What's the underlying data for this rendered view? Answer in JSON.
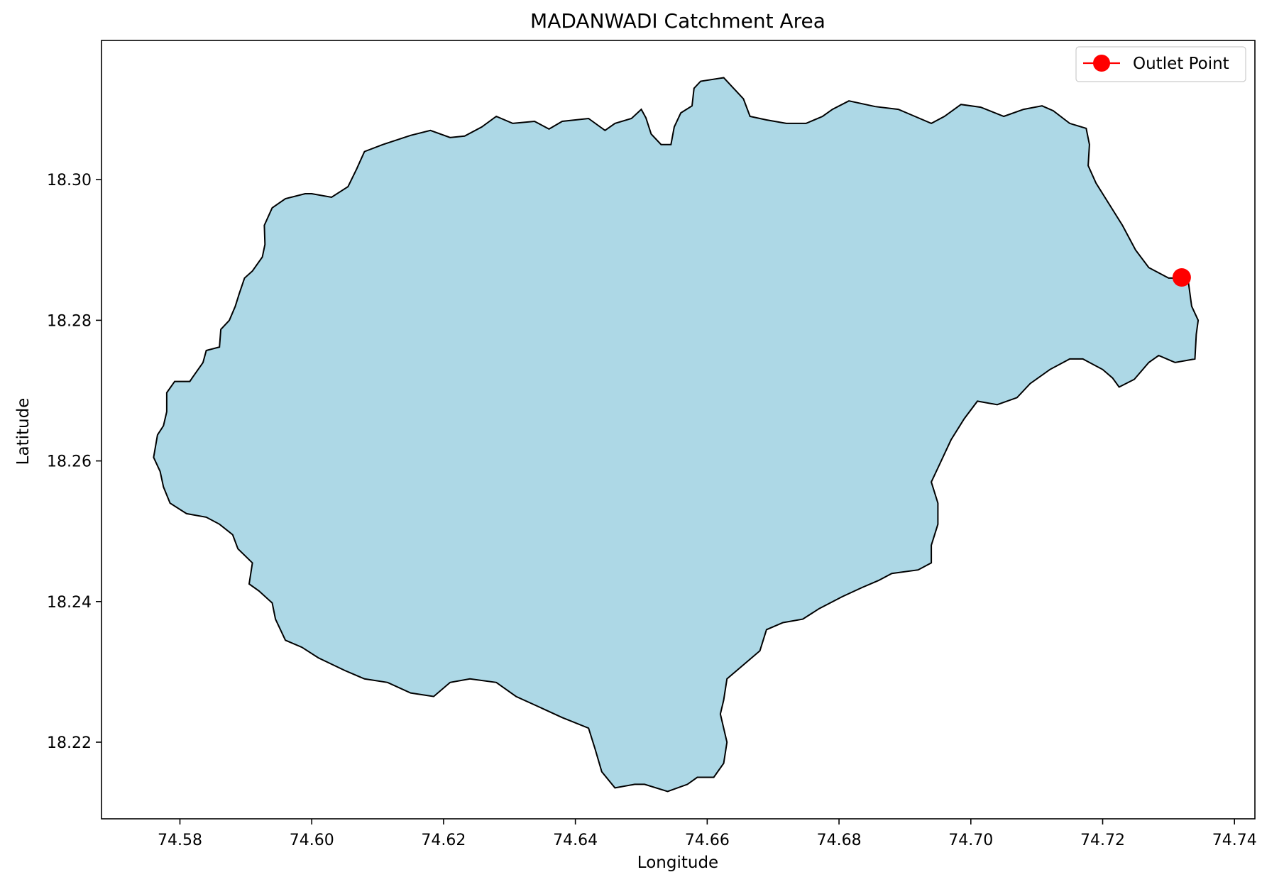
{
  "chart_data": {
    "type": "map",
    "title": "MADANWADI Catchment Area",
    "xlabel": "Longitude",
    "ylabel": "Latitude",
    "xlim": [
      74.5681,
      74.7431
    ],
    "ylim": [
      18.2091,
      18.3198
    ],
    "xticks": [
      74.58,
      74.6,
      74.62,
      74.64,
      74.66,
      74.68,
      74.7,
      74.72,
      74.74
    ],
    "xtick_labels": [
      "74.58",
      "74.60",
      "74.62",
      "74.64",
      "74.66",
      "74.68",
      "74.70",
      "74.72",
      "74.74"
    ],
    "yticks": [
      18.22,
      18.24,
      18.26,
      18.28,
      18.3
    ],
    "ytick_labels": [
      "18.22",
      "18.24",
      "18.26",
      "18.28",
      "18.30"
    ],
    "grid": false,
    "catchment": {
      "fill_color": "#add8e6",
      "edge_color": "#000000",
      "boundary": [
        [
          74.5766,
          18.2637
        ],
        [
          74.5775,
          18.265
        ],
        [
          74.578,
          18.267
        ],
        [
          74.578,
          18.2697
        ],
        [
          74.5792,
          18.2713
        ],
        [
          74.5815,
          18.2713
        ],
        [
          74.582,
          18.272
        ],
        [
          74.5835,
          18.274
        ],
        [
          74.584,
          18.2757
        ],
        [
          74.586,
          18.2762
        ],
        [
          74.5862,
          18.2787
        ],
        [
          74.5875,
          18.28
        ],
        [
          74.5884,
          18.282
        ],
        [
          74.589,
          18.2838
        ],
        [
          74.5898,
          18.286
        ],
        [
          74.591,
          18.287
        ],
        [
          74.5925,
          18.289
        ],
        [
          74.5929,
          18.2908
        ],
        [
          74.5928,
          18.2935
        ],
        [
          74.594,
          18.296
        ],
        [
          74.596,
          18.2973
        ],
        [
          74.599,
          18.298
        ],
        [
          74.6,
          18.298
        ],
        [
          74.603,
          18.2975
        ],
        [
          74.6055,
          18.299
        ],
        [
          74.6068,
          18.3015
        ],
        [
          74.608,
          18.304
        ],
        [
          74.6108,
          18.305
        ],
        [
          74.615,
          18.3063
        ],
        [
          74.618,
          18.307
        ],
        [
          74.621,
          18.306
        ],
        [
          74.6232,
          18.3062
        ],
        [
          74.6258,
          18.3075
        ],
        [
          74.628,
          18.309
        ],
        [
          74.6305,
          18.308
        ],
        [
          74.6338,
          18.3083
        ],
        [
          74.636,
          18.3072
        ],
        [
          74.638,
          18.3083
        ],
        [
          74.642,
          18.3087
        ],
        [
          74.6445,
          18.307
        ],
        [
          74.646,
          18.308
        ],
        [
          74.6485,
          18.3087
        ],
        [
          74.65,
          18.31
        ],
        [
          74.6507,
          18.3088
        ],
        [
          74.6515,
          18.3065
        ],
        [
          74.653,
          18.305
        ],
        [
          74.6545,
          18.305
        ],
        [
          74.655,
          18.3075
        ],
        [
          74.656,
          18.3095
        ],
        [
          74.6577,
          18.3105
        ],
        [
          74.658,
          18.313
        ],
        [
          74.659,
          18.314
        ],
        [
          74.6625,
          18.3145
        ],
        [
          74.664,
          18.313
        ],
        [
          74.6655,
          18.3115
        ],
        [
          74.6665,
          18.309
        ],
        [
          74.669,
          18.3085
        ],
        [
          74.672,
          18.308
        ],
        [
          74.675,
          18.308
        ],
        [
          74.6775,
          18.309
        ],
        [
          74.679,
          18.31
        ],
        [
          74.6815,
          18.3112
        ],
        [
          74.6855,
          18.3104
        ],
        [
          74.689,
          18.31
        ],
        [
          74.6915,
          18.309
        ],
        [
          74.694,
          18.308
        ],
        [
          74.696,
          18.309
        ],
        [
          74.6985,
          18.3107
        ],
        [
          74.7015,
          18.3103
        ],
        [
          74.705,
          18.309
        ],
        [
          74.708,
          18.31
        ],
        [
          74.7108,
          18.3105
        ],
        [
          74.7125,
          18.3098
        ],
        [
          74.715,
          18.308
        ],
        [
          74.7175,
          18.3073
        ],
        [
          74.718,
          18.305
        ],
        [
          74.7178,
          18.302
        ],
        [
          74.719,
          18.2995
        ],
        [
          74.721,
          18.2965
        ],
        [
          74.723,
          18.2935
        ],
        [
          74.725,
          18.29
        ],
        [
          74.727,
          18.2875
        ],
        [
          74.73,
          18.286
        ],
        [
          74.732,
          18.286
        ],
        [
          74.733,
          18.2855
        ],
        [
          74.7335,
          18.282
        ],
        [
          74.7345,
          18.28
        ],
        [
          74.7342,
          18.278
        ],
        [
          74.734,
          18.2745
        ],
        [
          74.731,
          18.274
        ],
        [
          74.7285,
          18.275
        ],
        [
          74.727,
          18.274
        ],
        [
          74.7248,
          18.2716
        ],
        [
          74.7225,
          18.2705
        ],
        [
          74.7215,
          18.2718
        ],
        [
          74.72,
          18.273
        ],
        [
          74.717,
          18.2745
        ],
        [
          74.715,
          18.2745
        ],
        [
          74.712,
          18.273
        ],
        [
          74.709,
          18.271
        ],
        [
          74.707,
          18.269
        ],
        [
          74.704,
          18.268
        ],
        [
          74.701,
          18.2685
        ],
        [
          74.699,
          18.266
        ],
        [
          74.697,
          18.263
        ],
        [
          74.695,
          18.259
        ],
        [
          74.694,
          18.257
        ],
        [
          74.695,
          18.254
        ],
        [
          74.695,
          18.251
        ],
        [
          74.694,
          18.248
        ],
        [
          74.694,
          18.2455
        ],
        [
          74.692,
          18.2445
        ],
        [
          74.688,
          18.244
        ],
        [
          74.686,
          18.243
        ],
        [
          74.6835,
          18.242
        ],
        [
          74.6805,
          18.2407
        ],
        [
          74.677,
          18.239
        ],
        [
          74.6745,
          18.2375
        ],
        [
          74.6715,
          18.237
        ],
        [
          74.669,
          18.236
        ],
        [
          74.668,
          18.233
        ],
        [
          74.6655,
          18.231
        ],
        [
          74.663,
          18.229
        ],
        [
          74.6625,
          18.226
        ],
        [
          74.662,
          18.224
        ],
        [
          74.663,
          18.22
        ],
        [
          74.6625,
          18.217
        ],
        [
          74.661,
          18.215
        ],
        [
          74.6585,
          18.215
        ],
        [
          74.657,
          18.214
        ],
        [
          74.654,
          18.213
        ],
        [
          74.6505,
          18.214
        ],
        [
          74.649,
          18.214
        ],
        [
          74.646,
          18.2135
        ],
        [
          74.644,
          18.2158
        ],
        [
          74.643,
          18.219
        ],
        [
          74.642,
          18.222
        ],
        [
          74.638,
          18.2235
        ],
        [
          74.6345,
          18.225
        ],
        [
          74.631,
          18.2265
        ],
        [
          74.628,
          18.2285
        ],
        [
          74.624,
          18.229
        ],
        [
          74.621,
          18.2285
        ],
        [
          74.6185,
          18.2265
        ],
        [
          74.615,
          18.227
        ],
        [
          74.6115,
          18.2285
        ],
        [
          74.608,
          18.229
        ],
        [
          74.605,
          18.2302
        ],
        [
          74.601,
          18.232
        ],
        [
          74.5985,
          18.2335
        ],
        [
          74.596,
          18.2345
        ],
        [
          74.5945,
          18.2375
        ],
        [
          74.594,
          18.2398
        ],
        [
          74.592,
          18.2415
        ],
        [
          74.5905,
          18.2425
        ],
        [
          74.591,
          18.2455
        ],
        [
          74.5888,
          18.2475
        ],
        [
          74.588,
          18.2495
        ],
        [
          74.586,
          18.251
        ],
        [
          74.584,
          18.252
        ],
        [
          74.581,
          18.2525
        ],
        [
          74.5785,
          18.254
        ],
        [
          74.5775,
          18.2563
        ],
        [
          74.577,
          18.2585
        ],
        [
          74.576,
          18.2605
        ],
        [
          74.5766,
          18.2637
        ]
      ]
    },
    "outlet": {
      "label": "Outlet Point",
      "lon": 74.732,
      "lat": 18.2861,
      "color": "#ff0000"
    },
    "legend": {
      "position": "top-right",
      "entries": [
        "Outlet Point"
      ]
    }
  }
}
